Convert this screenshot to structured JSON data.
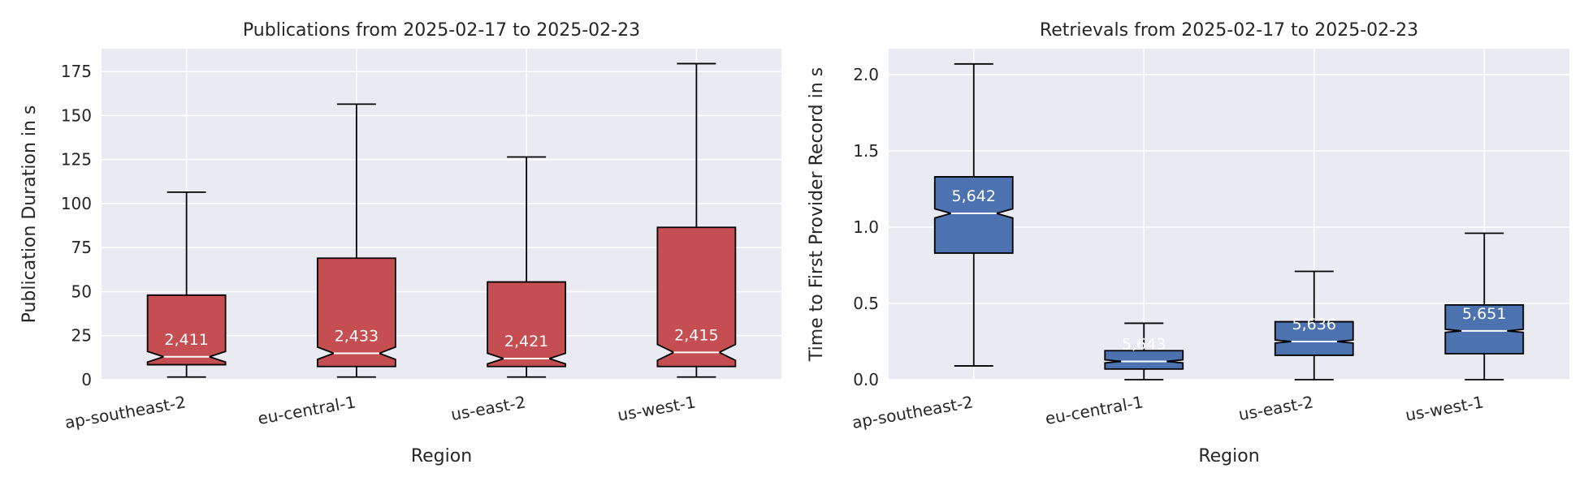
{
  "chart_data": [
    {
      "type": "box",
      "title": "Publications from 2025-02-17 to 2025-02-23",
      "xlabel": "Region",
      "ylabel": "Publication Duration in s",
      "ylim": [
        0,
        188
      ],
      "yticks": [
        0,
        25,
        50,
        75,
        100,
        125,
        150,
        175
      ],
      "ytick_labels": [
        "0",
        "25",
        "50",
        "75",
        "100",
        "125",
        "150",
        "175"
      ],
      "grid": true,
      "color": "#c44e52",
      "categories": [
        "ap-southeast-2",
        "eu-central-1",
        "us-east-2",
        "us-west-1"
      ],
      "boxes": [
        {
          "whislo": 1.5,
          "q1": 8.5,
          "med": 13,
          "q3": 48,
          "whishi": 106.5,
          "notch_lo": 10,
          "notch_hi": 16,
          "count": "2,411"
        },
        {
          "whislo": 1.5,
          "q1": 7.5,
          "med": 15,
          "q3": 69,
          "whishi": 156.5,
          "notch_lo": 11.5,
          "notch_hi": 18.5,
          "count": "2,433"
        },
        {
          "whislo": 1.5,
          "q1": 7.5,
          "med": 12,
          "q3": 55.5,
          "whishi": 126.5,
          "notch_lo": 9,
          "notch_hi": 15,
          "count": "2,421"
        },
        {
          "whislo": 1.5,
          "q1": 7.5,
          "med": 15.5,
          "q3": 86.5,
          "whishi": 179.5,
          "notch_lo": 11,
          "notch_hi": 20,
          "count": "2,415"
        }
      ]
    },
    {
      "type": "box",
      "title": "Retrievals from 2025-02-17 to 2025-02-23",
      "xlabel": "Region",
      "ylabel": "Time to First Provider Record in s",
      "ylim": [
        0,
        2.17
      ],
      "yticks": [
        0,
        0.5,
        1,
        1.5,
        2
      ],
      "ytick_labels": [
        "0.0",
        "0.5",
        "1.0",
        "1.5",
        "2.0"
      ],
      "grid": true,
      "color": "#4c72b0",
      "categories": [
        "ap-southeast-2",
        "eu-central-1",
        "us-east-2",
        "us-west-1"
      ],
      "boxes": [
        {
          "whislo": 0.09,
          "q1": 0.83,
          "med": 1.09,
          "q3": 1.33,
          "whishi": 2.07,
          "notch_lo": 1.06,
          "notch_hi": 1.12,
          "count": "5,642"
        },
        {
          "whislo": 0.0,
          "q1": 0.07,
          "med": 0.12,
          "q3": 0.19,
          "whishi": 0.37,
          "notch_lo": 0.11,
          "notch_hi": 0.13,
          "count": "5,643"
        },
        {
          "whislo": 0.0,
          "q1": 0.16,
          "med": 0.25,
          "q3": 0.38,
          "whishi": 0.71,
          "notch_lo": 0.24,
          "notch_hi": 0.26,
          "count": "5,636"
        },
        {
          "whislo": 0.0,
          "q1": 0.17,
          "med": 0.32,
          "q3": 0.49,
          "whishi": 0.96,
          "notch_lo": 0.31,
          "notch_hi": 0.33,
          "count": "5,651"
        }
      ]
    }
  ]
}
